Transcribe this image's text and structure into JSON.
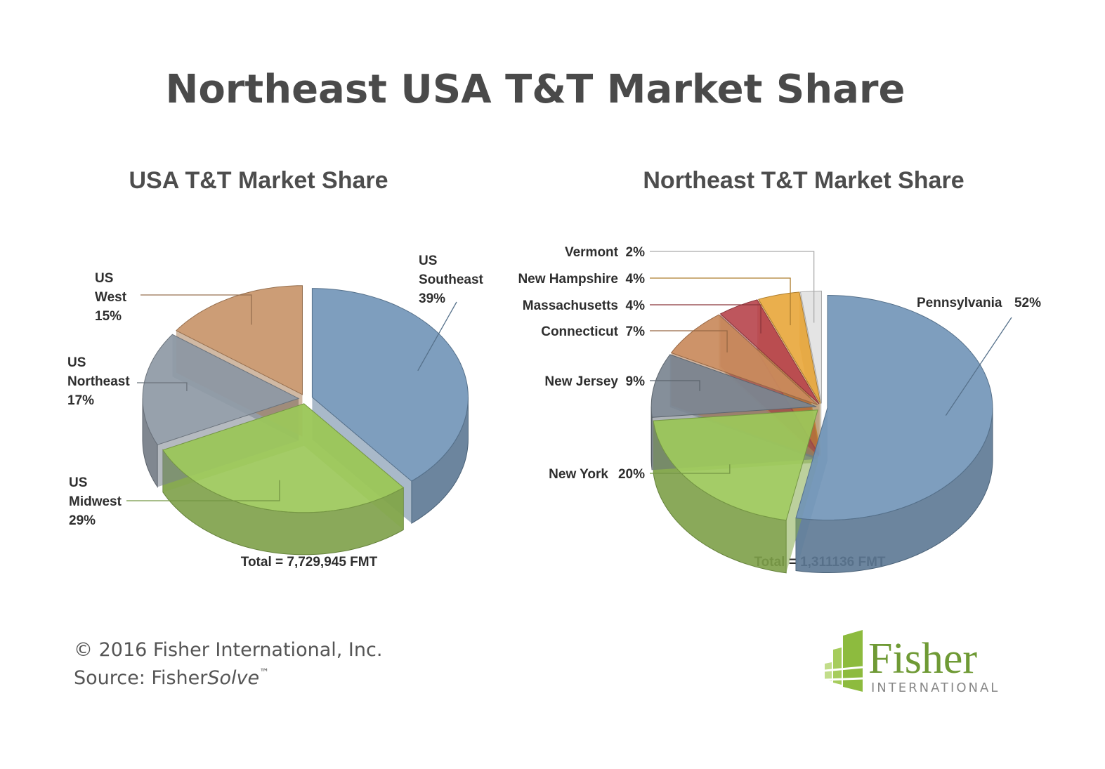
{
  "title": "Northeast USA T&T Market Share",
  "chart_data": [
    {
      "type": "pie",
      "title": "USA T&T Market Share",
      "categories": [
        "US Southeast",
        "US Midwest",
        "US Northeast",
        "US West"
      ],
      "values": [
        39,
        29,
        17,
        15
      ],
      "value_labels": [
        "39%",
        "29%",
        "17%",
        "15%"
      ],
      "colors": [
        "#7396b9",
        "#9cc85a",
        "#8e99a5",
        "#c8956a"
      ],
      "total": "Total = 7,729,945 FMT"
    },
    {
      "type": "pie",
      "title": "Northeast T&T Market Share",
      "categories": [
        "Pennsylvania",
        "New York",
        "New Jersey",
        "Connecticut",
        "Massachusetts",
        "New Hampshire",
        "Vermont"
      ],
      "values": [
        52,
        20,
        9,
        7,
        4,
        4,
        2
      ],
      "value_labels": [
        "52%",
        "20%",
        "9%",
        "7%",
        "4%",
        "4%",
        "2%"
      ],
      "colors": [
        "#7396b9",
        "#9cc85a",
        "#7b8691",
        "#c98a5c",
        "#b8484f",
        "#e8a83e",
        "#e2e2e2"
      ],
      "total": "Total = 1,311136 FMT"
    }
  ],
  "footer": {
    "copyright": "© 2016 Fisher International, Inc.",
    "source": "Source: Fisher",
    "source_italic": "Solve",
    "trademark": "™"
  },
  "logo": {
    "name": "Fisher",
    "subtitle": "INTERNATIONAL"
  }
}
